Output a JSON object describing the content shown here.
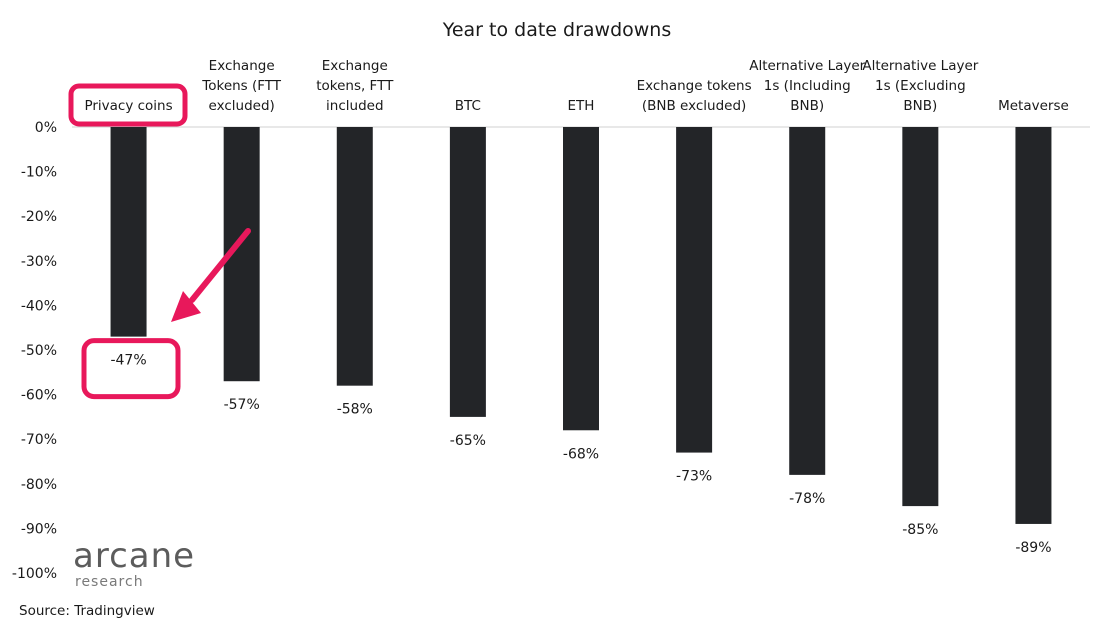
{
  "chart_data": {
    "type": "bar",
    "title": "Year to date drawdowns",
    "categories": [
      [
        "Privacy coins"
      ],
      [
        "Exchange",
        "Tokens (FTT",
        "excluded)"
      ],
      [
        "Exchange",
        "tokens, FTT",
        "included"
      ],
      [
        "BTC"
      ],
      [
        "ETH"
      ],
      [
        "Exchange tokens",
        "(BNB excluded)"
      ],
      [
        "Alternative Layer",
        "1s (Including",
        "BNB)"
      ],
      [
        "Alternative Layer",
        "1s (Excluding",
        "BNB)"
      ],
      [
        "Metaverse"
      ]
    ],
    "values": [
      -47,
      -57,
      -58,
      -65,
      -68,
      -73,
      -78,
      -85,
      -89
    ],
    "data_labels": [
      "-47%",
      "-57%",
      "-58%",
      "-65%",
      "-68%",
      "-73%",
      "-78%",
      "-85%",
      "-89%"
    ],
    "yticks": [
      "0%",
      "-10%",
      "-20%",
      "-30%",
      "-40%",
      "-50%",
      "-60%",
      "-70%",
      "-80%",
      "-90%",
      "-100%"
    ],
    "ylim": [
      -100,
      0
    ],
    "bar_color": "#232528",
    "highlight_color": "#e8185b",
    "highlighted_category_index": 0,
    "source": "Source: Tradingview",
    "logo": {
      "main": "arcane",
      "sub": "research"
    }
  }
}
